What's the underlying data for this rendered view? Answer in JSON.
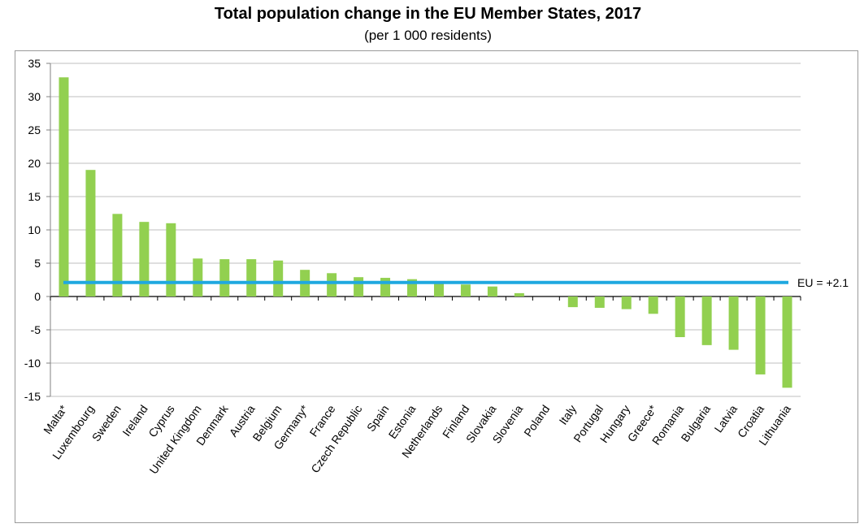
{
  "chart_data": {
    "type": "bar",
    "title": "Total population change in the EU Member States, 2017",
    "subtitle": "(per 1 000 residents)",
    "categories": [
      "Malta*",
      "Luxembourg",
      "Sweden",
      "Ireland",
      "Cyprus",
      "United Kingdom",
      "Denmark",
      "Austria",
      "Belgium",
      "Germany*",
      "France",
      "Czech Republic",
      "Spain",
      "Estonia",
      "Netherlands",
      "Finland",
      "Slovakia",
      "Slovenia",
      "Poland",
      "Italy",
      "Portugal",
      "Hungary",
      "Greece*",
      "Romania",
      "Bulgaria",
      "Latvia",
      "Croatia",
      "Lithuania"
    ],
    "values": [
      32.9,
      19.0,
      12.4,
      11.2,
      11.0,
      5.7,
      5.6,
      5.6,
      5.4,
      4.0,
      3.5,
      2.9,
      2.8,
      2.6,
      2.1,
      1.8,
      1.5,
      0.5,
      0.0,
      -1.6,
      -1.7,
      -1.9,
      -2.6,
      -6.1,
      -7.3,
      -8.0,
      -11.7,
      -13.7
    ],
    "bar_color": "#92d050",
    "reference_line": {
      "label": "EU = +2.1",
      "value": 2.1,
      "color": "#1fa8e0"
    },
    "ylim": [
      -15,
      35
    ],
    "yticks": [
      35,
      30,
      25,
      20,
      15,
      10,
      5,
      0,
      -5,
      -10,
      -15
    ],
    "grid": true,
    "xlabel": "",
    "ylabel": ""
  }
}
